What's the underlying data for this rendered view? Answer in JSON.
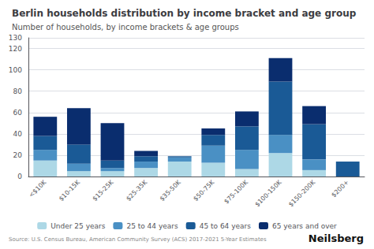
{
  "chart_data": {
    "type": "bar",
    "title": "Berlin households distribution by income bracket and age group",
    "subtitle": "Number of households, by income brackets & age groups",
    "annotations": [
      "Source: U.S. Census Bureau, American Community Survey (ACS) 2017-2021 5-Year Estimates",
      "Neilsberg"
    ],
    "categories": [
      "<$10K",
      "$10-15K",
      "$15-25K",
      "$25-35K",
      "$35-50K",
      "$50-75K",
      "$75-100K",
      "$100-150K",
      "$150-200K",
      "$200+"
    ],
    "series": [
      {
        "name": "Under 25 years",
        "color": "#add8e6",
        "values": [
          15,
          5,
          5,
          8,
          14,
          13,
          7,
          22,
          6,
          0
        ]
      },
      {
        "name": "25 to 44 years",
        "color": "#4a90c4",
        "values": [
          10,
          7,
          3,
          6,
          4,
          16,
          18,
          17,
          10,
          0
        ]
      },
      {
        "name": "45 to 64 years",
        "color": "#1a5a96",
        "values": [
          13,
          18,
          7,
          5,
          1,
          10,
          22,
          50,
          33,
          14
        ]
      },
      {
        "name": "65 years and over",
        "color": "#0a2d6e",
        "values": [
          18,
          34,
          35,
          5,
          0,
          6,
          14,
          22,
          17,
          0
        ]
      }
    ],
    "stacked": true,
    "ylim": [
      0,
      130
    ],
    "yticks": [
      0,
      20,
      40,
      60,
      80,
      100,
      120
    ],
    "grid": true,
    "legend": "bottom"
  }
}
